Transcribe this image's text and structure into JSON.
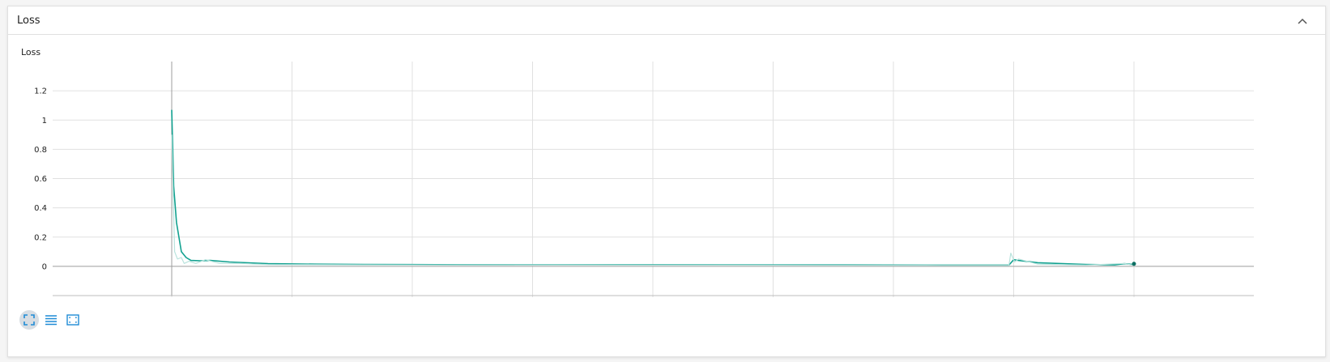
{
  "section": {
    "title": "Loss",
    "collapse_icon": "chevron-up-icon"
  },
  "toolbar": {
    "buttons": [
      {
        "icon": "fullscreen-icon",
        "active": true
      },
      {
        "icon": "list-icon",
        "active": false
      },
      {
        "icon": "fit-domain-icon",
        "active": false
      }
    ]
  },
  "colors": {
    "accent": "#12a190",
    "raw_line": "#b9e3dd",
    "grid": "#e0e0e0",
    "axis": "#9e9e9e",
    "button": "#1f8bd6"
  },
  "chart_data": {
    "type": "line",
    "title": "Loss",
    "xlabel": "",
    "ylabel": "",
    "ylim": [
      -0.2,
      1.4
    ],
    "yticks": [
      {
        "value": 0,
        "label": "0"
      },
      {
        "value": 0.2,
        "label": "0.2"
      },
      {
        "value": 0.4,
        "label": "0.4"
      },
      {
        "value": 0.6,
        "label": "0.6"
      },
      {
        "value": 0.8,
        "label": "0.8"
      },
      {
        "value": 1,
        "label": "1"
      },
      {
        "value": 1.2,
        "label": "1.2"
      }
    ],
    "x_tick_labels": "not visible",
    "grid": true,
    "legend": "none",
    "series": [
      {
        "style": "smoothed",
        "x": [
          0,
          0.002,
          0.005,
          0.01,
          0.015,
          0.02,
          0.03,
          0.04,
          0.06,
          0.08,
          0.1,
          0.15,
          0.2,
          0.3,
          0.4,
          0.5,
          0.6,
          0.7,
          0.8,
          0.85,
          0.87,
          0.875,
          0.88,
          0.9,
          0.95,
          0.98,
          0.99,
          1.0
        ],
        "y": [
          1.07,
          0.55,
          0.3,
          0.1,
          0.06,
          0.04,
          0.038,
          0.04,
          0.03,
          0.024,
          0.018,
          0.015,
          0.013,
          0.011,
          0.01,
          0.01,
          0.009,
          0.009,
          0.008,
          0.008,
          0.008,
          0.045,
          0.04,
          0.025,
          0.013,
          0.01,
          0.018,
          0.012
        ]
      },
      {
        "style": "raw",
        "x": [
          0,
          0.003,
          0.006,
          0.01,
          0.013,
          0.018,
          0.025,
          0.035,
          0.05,
          0.07,
          0.1,
          0.2,
          0.4,
          0.6,
          0.8,
          0.87,
          0.872,
          0.876,
          0.88,
          0.9,
          0.95,
          0.99,
          1.0
        ],
        "y": [
          0.9,
          0.1,
          0.05,
          0.06,
          0.02,
          0.035,
          0.02,
          0.045,
          0.02,
          0.02,
          0.012,
          0.01,
          0.008,
          0.007,
          0.006,
          0.006,
          0.09,
          0.03,
          0.05,
          0.015,
          0.008,
          0.02,
          0.006
        ]
      }
    ]
  }
}
